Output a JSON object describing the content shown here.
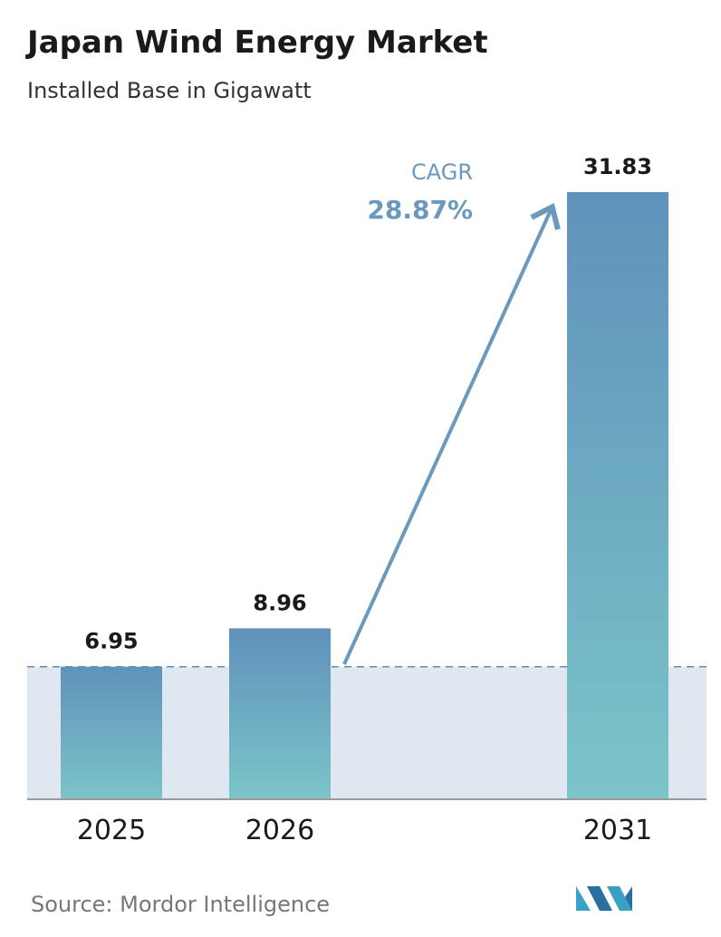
{
  "chart_data": {
    "type": "bar",
    "title": "Japan Wind Energy Market",
    "subtitle": "Installed Base in Gigawatt",
    "categories": [
      "2025",
      "2026",
      "2031"
    ],
    "values": [
      6.95,
      8.96,
      31.83
    ],
    "colors": [
      "#5f92bb",
      "#7cc4c9"
    ],
    "annotations": [
      "CAGR",
      "28.87%"
    ],
    "source": "Source: Mordor Intelligence"
  }
}
